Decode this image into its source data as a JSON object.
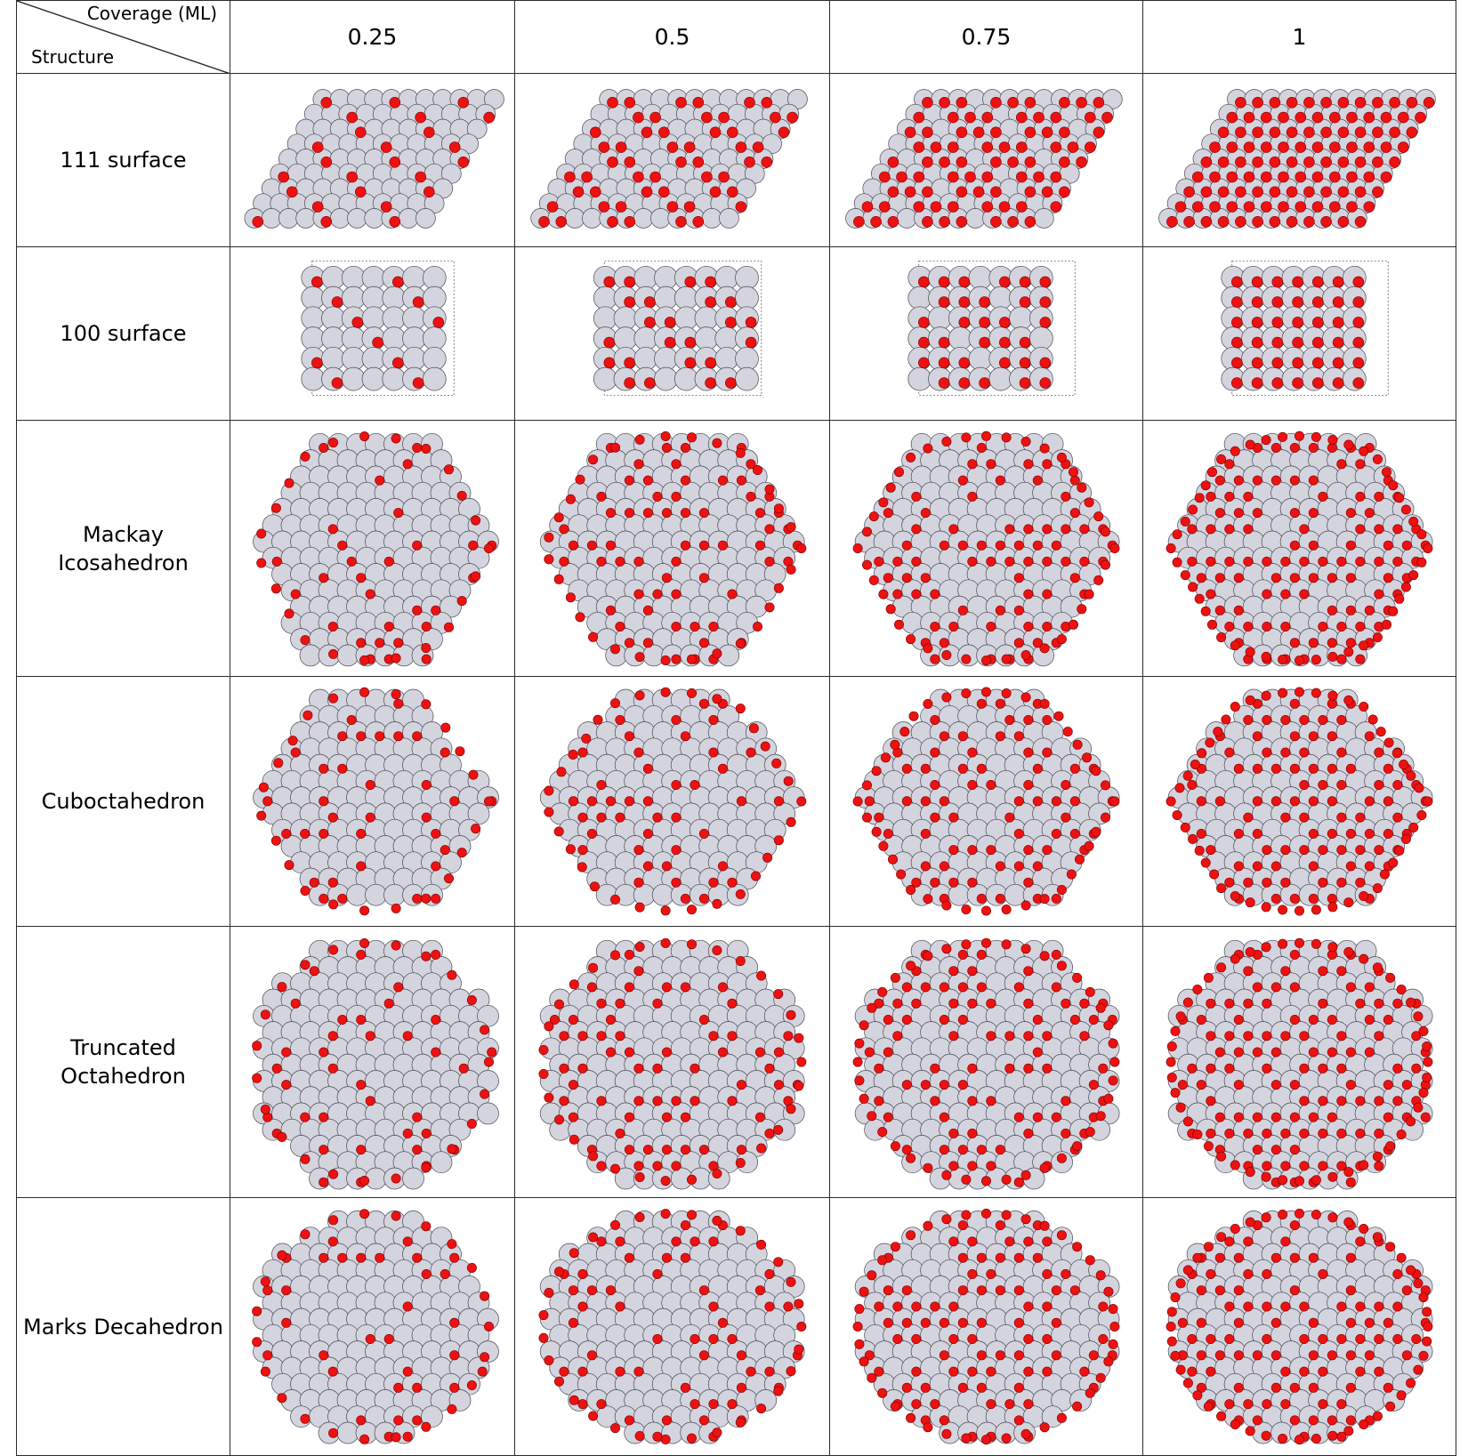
{
  "header": {
    "corner_top": "Coverage (ML)",
    "corner_bottom": "Structure",
    "coverages": [
      "0.25",
      "0.5",
      "0.75",
      "1"
    ]
  },
  "structures": [
    {
      "label": "111 surface",
      "shape": "rhombus"
    },
    {
      "label": "100 surface",
      "shape": "square"
    },
    {
      "label": "Mackay Icosahedron",
      "shape": "hexagon"
    },
    {
      "label": "Cuboctahedron",
      "shape": "cubocta"
    },
    {
      "label": "Truncated Octahedron",
      "shape": "octagon"
    },
    {
      "label": "Marks Decahedron",
      "shape": "ellipse"
    }
  ],
  "colors": {
    "host_atom": "#d4d4de",
    "adsorbate_atom": "#ee1111",
    "grid_line": "#2b2b2b"
  }
}
